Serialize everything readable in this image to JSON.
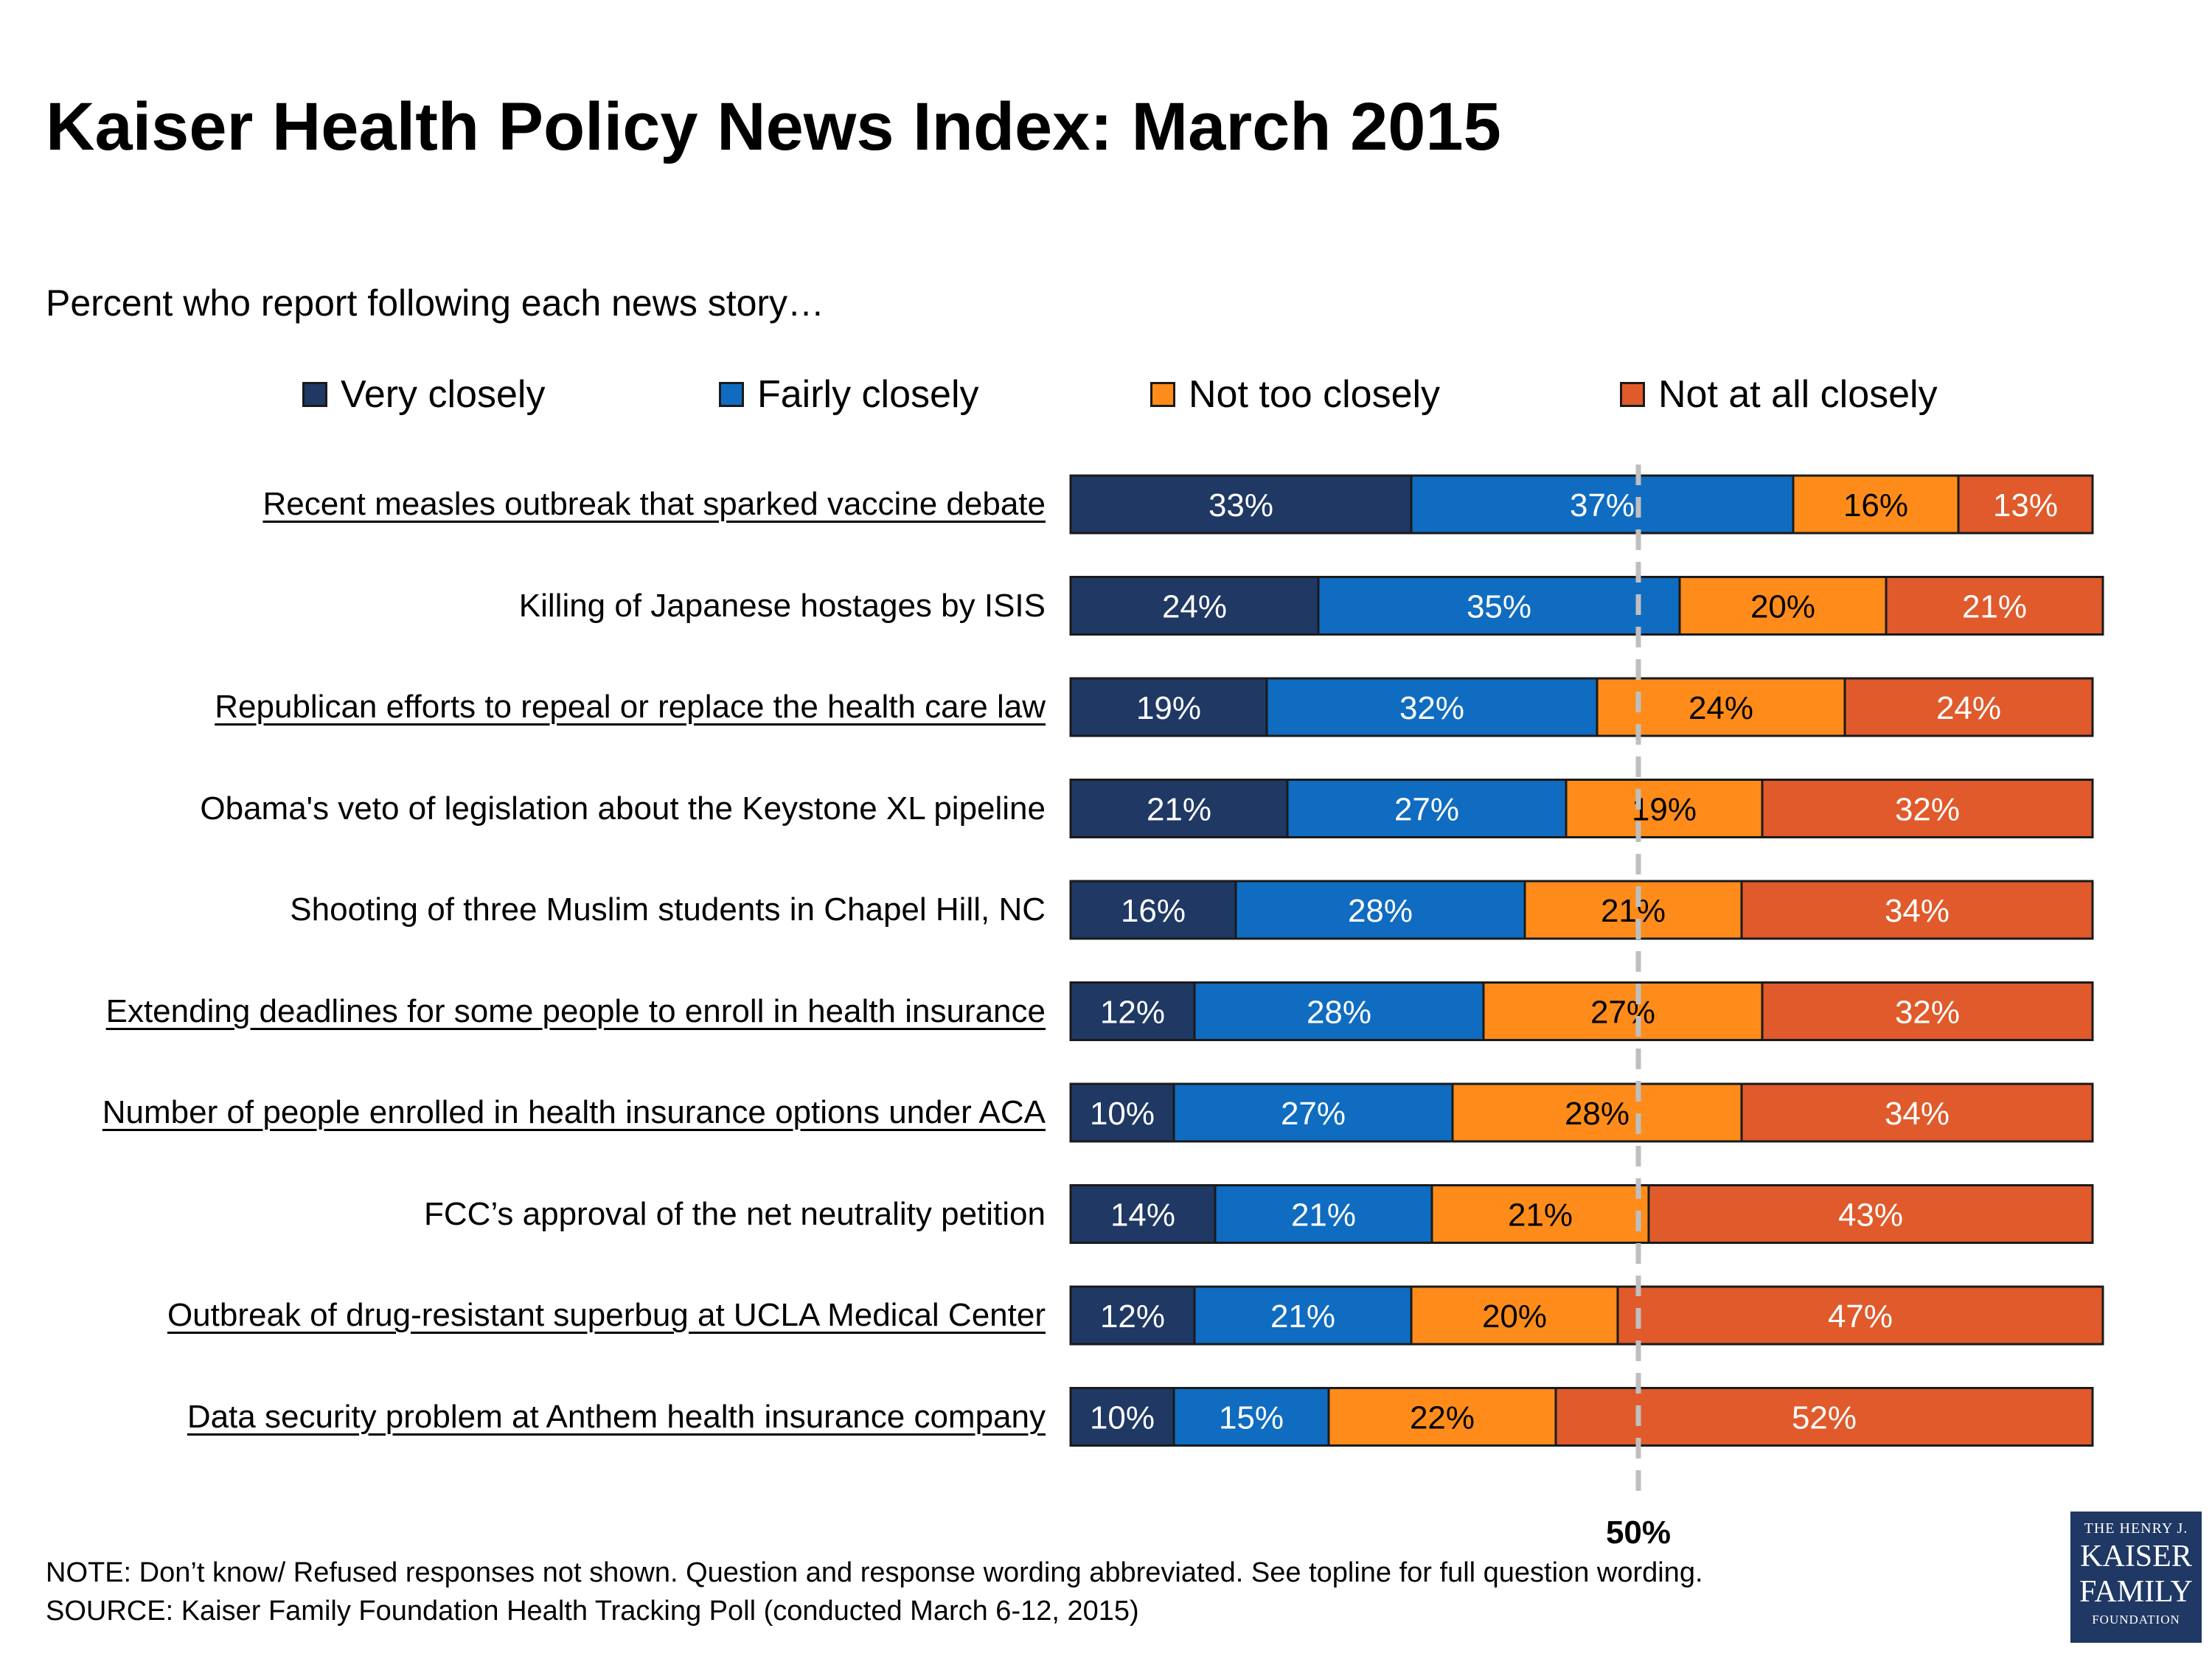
{
  "title": "Kaiser Health Policy News Index: March 2015",
  "subtitle": "Percent who report following each news story…",
  "legend": [
    {
      "label": "Very closely",
      "color": "#1f3864"
    },
    {
      "label": "Fairly closely",
      "color": "#0f6cc0"
    },
    {
      "label": "Not too closely",
      "color": "#ff8c1a"
    },
    {
      "label": "Not at all closely",
      "color": "#e05a2b"
    }
  ],
  "reference_line": {
    "value": 50,
    "label": "50%"
  },
  "chart_data": {
    "type": "bar",
    "orientation": "horizontal",
    "stacked": true,
    "categories": [
      "Recent measles outbreak that sparked vaccine debate",
      "Killing of Japanese hostages by ISIS",
      "Republican efforts to repeal or replace the health care law",
      "Obama's veto of legislation about the Keystone XL pipeline",
      "Shooting of three Muslim students in Chapel Hill, NC",
      "Extending deadlines for some people to enroll in health insurance",
      "Number of people enrolled in health insurance options under ACA",
      "FCC’s approval of the net neutrality petition",
      "Outbreak of drug-resistant superbug at UCLA Medical Center",
      "Data security problem at Anthem health insurance company"
    ],
    "underlined": [
      true,
      false,
      true,
      false,
      false,
      true,
      true,
      false,
      true,
      true
    ],
    "series": [
      {
        "name": "Very closely",
        "values": [
          33,
          24,
          19,
          21,
          16,
          12,
          10,
          14,
          12,
          10
        ]
      },
      {
        "name": "Fairly closely",
        "values": [
          37,
          35,
          32,
          27,
          28,
          28,
          27,
          21,
          21,
          15
        ]
      },
      {
        "name": "Not too closely",
        "values": [
          16,
          20,
          24,
          19,
          21,
          27,
          28,
          21,
          20,
          22
        ]
      },
      {
        "name": "Not at all closely",
        "values": [
          13,
          21,
          24,
          32,
          34,
          32,
          34,
          43,
          47,
          52
        ]
      }
    ],
    "data_labels": [
      [
        "33%",
        "37%",
        "16%",
        "13%"
      ],
      [
        "24%",
        "35%",
        "20%",
        "21%"
      ],
      [
        "19%",
        "32%",
        "24%",
        "24%"
      ],
      [
        "21%",
        "27%",
        "19%",
        "32%"
      ],
      [
        "16%",
        "28%",
        "21%",
        "34%"
      ],
      [
        "12%",
        "28%",
        "27%",
        "32%"
      ],
      [
        "10%",
        "27%",
        "28%",
        "34%"
      ],
      [
        "14%",
        "21%",
        "21%",
        "43%"
      ],
      [
        "12%",
        "21%",
        "20%",
        "47%"
      ],
      [
        "10%",
        "15%",
        "22%",
        "52%"
      ]
    ],
    "label_colors": [
      "#ffffff",
      "#ffffff",
      "#000000",
      "#ffffff"
    ],
    "xlim": [
      0,
      100
    ],
    "grid": false,
    "legend_position": "top"
  },
  "note": "NOTE: Don’t know/ Refused responses not shown. Question and response wording abbreviated.  See topline for full question wording.",
  "source": "SOURCE: Kaiser Family Foundation Health Tracking Poll (conducted March 6-12, 2015)",
  "logo": {
    "line1": "THE HENRY J.",
    "line2a": "KAISER",
    "line2b": "FAMILY",
    "line3": "FOUNDATION"
  }
}
